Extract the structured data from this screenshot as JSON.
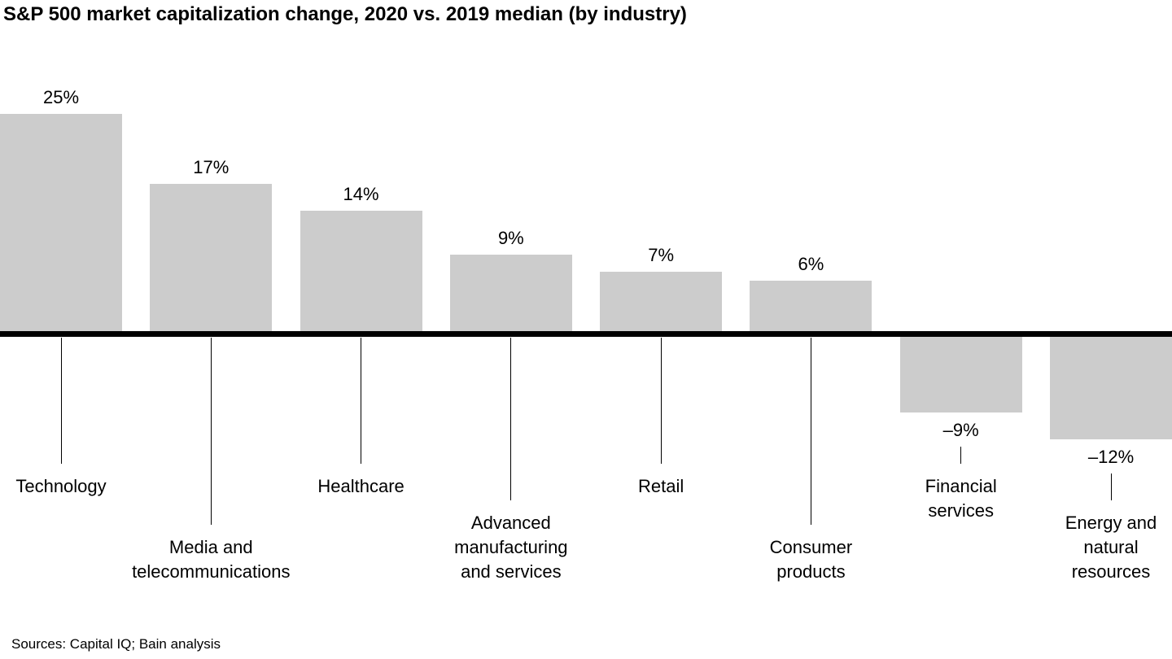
{
  "title": "S&P 500 market capitalization change, 2020 vs. 2019 median (by industry)",
  "source": "Sources: Capital IQ; Bain analysis",
  "chart_data": {
    "type": "bar",
    "title": "S&P 500 market capitalization change, 2020 vs. 2019 median (by industry)",
    "categories": [
      "Technology",
      "Media and telecommunications",
      "Healthcare",
      "Advanced manufacturing and services",
      "Retail",
      "Consumer products",
      "Financial services",
      "Energy and natural resources"
    ],
    "values": [
      25,
      17,
      14,
      9,
      7,
      6,
      -9,
      -12
    ],
    "value_labels": [
      "25%",
      "17%",
      "14%",
      "9%",
      "7%",
      "6%",
      "–9%",
      "–12%"
    ],
    "category_label_lines": [
      [
        "Technology"
      ],
      [
        "Media and",
        "telecommunications"
      ],
      [
        "Healthcare"
      ],
      [
        "Advanced",
        "manufacturing",
        "and services"
      ],
      [
        "Retail"
      ],
      [
        "Consumer",
        "products"
      ],
      [
        "Financial",
        "services"
      ],
      [
        "Energy and",
        "natural",
        "resources"
      ]
    ],
    "label_rows": [
      0,
      1,
      0,
      1,
      0,
      1,
      0,
      1
    ],
    "ylim": [
      -14,
      27
    ],
    "bar_color": "#cccccc",
    "baseline_color": "#000000",
    "text_color": "#000000",
    "grid": false,
    "legend": false
  }
}
